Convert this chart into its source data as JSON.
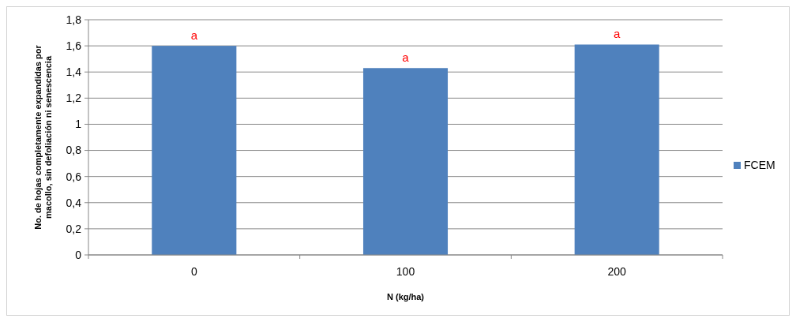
{
  "chart_data": {
    "type": "bar",
    "xlabel": "N (kg/ha)",
    "ylabel": "No. de hojas completamente expandidas por macollo, sin defoliación ni senescencia",
    "categories": [
      "0",
      "100",
      "200"
    ],
    "series": [
      {
        "name": "FCEM",
        "color": "#4f81bd",
        "values": [
          1.6,
          1.43,
          1.61
        ]
      }
    ],
    "ylim": [
      0,
      1.8
    ],
    "yticks": [
      0,
      {
        "value": 0.2,
        "label": "0,2"
      },
      {
        "value": 0.4,
        "label": "0,4"
      },
      {
        "value": 0.6,
        "label": "0,6"
      },
      {
        "value": 0.8,
        "label": "0,8"
      },
      1,
      {
        "value": 1.2,
        "label": "1,2"
      },
      {
        "value": 1.4,
        "label": "1,4"
      },
      {
        "value": 1.6,
        "label": "1,6"
      },
      {
        "value": 1.8,
        "label": "1,8"
      }
    ],
    "annotations": [
      "a",
      "a",
      "a"
    ],
    "grid": "y",
    "legend": "right"
  }
}
